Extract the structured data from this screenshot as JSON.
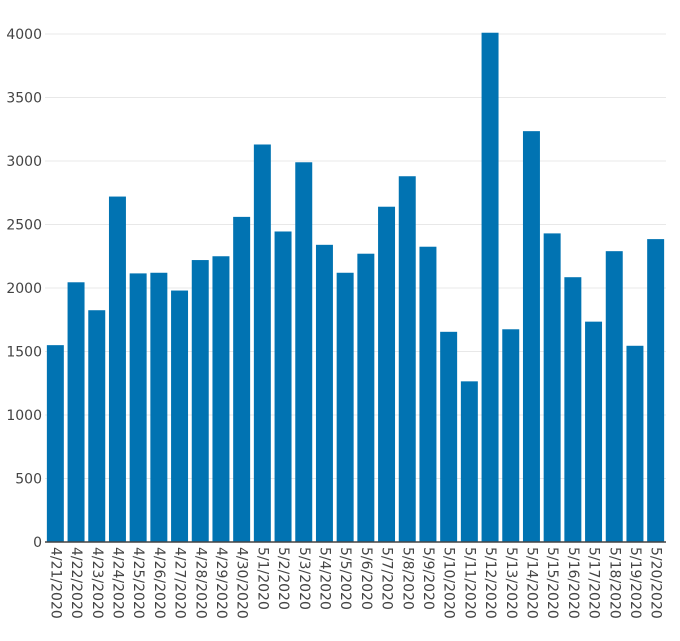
{
  "chart_data": {
    "type": "bar",
    "categories": [
      "4/21/2020",
      "4/22/2020",
      "4/23/2020",
      "4/24/2020",
      "4/25/2020",
      "4/26/2020",
      "4/27/2020",
      "4/28/2020",
      "4/29/2020",
      "4/30/2020",
      "5/1/2020",
      "5/2/2020",
      "5/3/2020",
      "5/4/2020",
      "5/5/2020",
      "5/6/2020",
      "5/7/2020",
      "5/8/2020",
      "5/9/2020",
      "5/10/2020",
      "5/11/2020",
      "5/12/2020",
      "5/13/2020",
      "5/14/2020",
      "5/15/2020",
      "5/16/2020",
      "5/17/2020",
      "5/18/2020",
      "5/19/2020",
      "5/20/2020"
    ],
    "values": [
      1550,
      2045,
      1825,
      2720,
      2115,
      2120,
      1980,
      2220,
      2250,
      2560,
      3130,
      2445,
      2990,
      2340,
      2120,
      2270,
      2640,
      2880,
      2325,
      1655,
      1265,
      4010,
      1675,
      3235,
      2430,
      2085,
      1735,
      2290,
      1545,
      2385
    ],
    "title": "",
    "xlabel": "",
    "ylabel": "",
    "ylim": [
      0,
      4000
    ],
    "yticks": [
      0,
      500,
      1000,
      1500,
      2000,
      2500,
      3000,
      3500,
      4000
    ],
    "grid": true,
    "legend": "none",
    "bar_color": "#0173b2"
  }
}
